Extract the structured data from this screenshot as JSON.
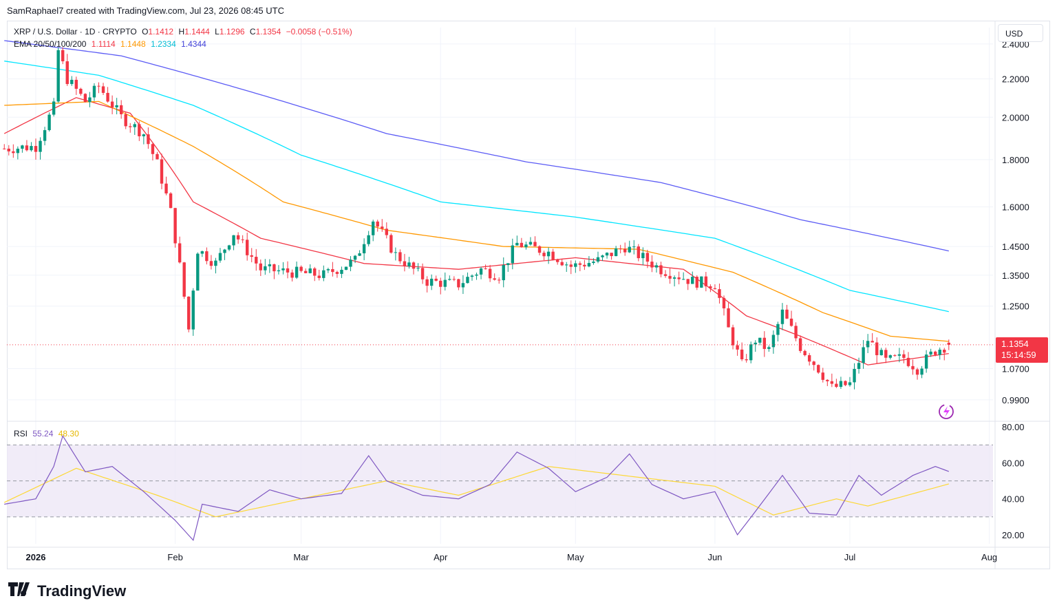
{
  "header": {
    "credit": "SamRaphael7 created with TradingView.com, Jul 23, 2026 08:45 UTC"
  },
  "legend": {
    "symbol": "XRP / U.S. Dollar · 1D · CRYPTO",
    "o_label": "O",
    "o_value": "1.1412",
    "h_label": "H",
    "h_value": "1.1444",
    "l_label": "L",
    "l_value": "1.1296",
    "c_label": "C",
    "c_value": "1.1354",
    "change": "−0.0058 (−0.51%)",
    "ema_label": "EMA 20/50/100/200",
    "ema20": "1.1114",
    "ema50": "1.1448",
    "ema100": "1.2334",
    "ema200": "1.4344",
    "rsi_label": "RSI",
    "rsi_value": "55.24",
    "rsi_ma_value": "48.30"
  },
  "currency_button": "USD",
  "price_tag": {
    "price": "1.1354",
    "countdown": "15:14:59"
  },
  "brand": "TradingView",
  "colors": {
    "up": "#089981",
    "down": "#f23645",
    "ema20": "#f23645",
    "ema50": "#ff9800",
    "ema100": "#00e5ff",
    "ema200": "#5b5bf5",
    "rsi": "#7e57c2",
    "rsi_ma": "#fdd835",
    "rsi_band": "#ede7f6"
  },
  "chart_data": {
    "type": "candlestick",
    "timeframe": "1D",
    "x_tick_labels": [
      "2026",
      "Feb",
      "Mar",
      "Apr",
      "May",
      "Jun",
      "Jul",
      "Aug"
    ],
    "y_tick_labels": [
      "2.4000",
      "2.2000",
      "2.0000",
      "1.8000",
      "1.6000",
      "1.4500",
      "1.3500",
      "1.2500",
      "1.0700",
      "0.9900"
    ],
    "y_scale": "log",
    "ylim": [
      0.95,
      2.5
    ],
    "price_line": 1.1354,
    "ohlc_anchors": [
      {
        "date": "2025-12-25",
        "close": 1.85
      },
      {
        "date": "2026-01-01",
        "close": 1.86
      },
      {
        "date": "2026-01-05",
        "close": 2.05
      },
      {
        "date": "2026-01-06",
        "close": 2.36
      },
      {
        "date": "2026-01-08",
        "close": 2.2
      },
      {
        "date": "2026-01-12",
        "close": 2.08
      },
      {
        "date": "2026-01-15",
        "close": 2.16
      },
      {
        "date": "2026-01-20",
        "close": 2.0
      },
      {
        "date": "2026-01-25",
        "close": 1.92
      },
      {
        "date": "2026-01-28",
        "close": 1.78
      },
      {
        "date": "2026-01-31",
        "close": 1.58
      },
      {
        "date": "2026-02-04",
        "close": 1.18
      },
      {
        "date": "2026-02-06",
        "close": 1.44
      },
      {
        "date": "2026-02-10",
        "close": 1.39
      },
      {
        "date": "2026-02-14",
        "close": 1.5
      },
      {
        "date": "2026-02-20",
        "close": 1.37
      },
      {
        "date": "2026-02-27",
        "close": 1.36
      },
      {
        "date": "2026-03-06",
        "close": 1.35
      },
      {
        "date": "2026-03-13",
        "close": 1.4
      },
      {
        "date": "2026-03-17",
        "close": 1.55
      },
      {
        "date": "2026-03-22",
        "close": 1.42
      },
      {
        "date": "2026-03-29",
        "close": 1.33
      },
      {
        "date": "2026-04-05",
        "close": 1.32
      },
      {
        "date": "2026-04-10",
        "close": 1.37
      },
      {
        "date": "2026-04-14",
        "close": 1.35
      },
      {
        "date": "2026-04-18",
        "close": 1.46
      },
      {
        "date": "2026-04-25",
        "close": 1.43
      },
      {
        "date": "2026-04-30",
        "close": 1.38
      },
      {
        "date": "2026-05-06",
        "close": 1.4
      },
      {
        "date": "2026-05-12",
        "close": 1.45
      },
      {
        "date": "2026-05-15",
        "close": 1.42
      },
      {
        "date": "2026-05-20",
        "close": 1.37
      },
      {
        "date": "2026-05-27",
        "close": 1.33
      },
      {
        "date": "2026-06-01",
        "close": 1.32
      },
      {
        "date": "2026-06-04",
        "close": 1.18
      },
      {
        "date": "2026-06-07",
        "close": 1.08
      },
      {
        "date": "2026-06-10",
        "close": 1.15
      },
      {
        "date": "2026-06-13",
        "close": 1.12
      },
      {
        "date": "2026-06-16",
        "close": 1.23
      },
      {
        "date": "2026-06-20",
        "close": 1.13
      },
      {
        "date": "2026-06-24",
        "close": 1.07
      },
      {
        "date": "2026-06-27",
        "close": 1.02
      },
      {
        "date": "2026-07-01",
        "close": 1.03
      },
      {
        "date": "2026-07-05",
        "close": 1.15
      },
      {
        "date": "2026-07-09",
        "close": 1.09
      },
      {
        "date": "2026-07-13",
        "close": 1.1
      },
      {
        "date": "2026-07-16",
        "close": 1.07
      },
      {
        "date": "2026-07-20",
        "close": 1.12
      },
      {
        "date": "2026-07-23",
        "close": 1.1354
      }
    ],
    "ema_series": [
      {
        "name": "EMA 20",
        "color": "#f23645",
        "points": [
          [
            "2025-12-25",
            1.92
          ],
          [
            "2026-01-10",
            2.1
          ],
          [
            "2026-01-22",
            2.02
          ],
          [
            "2026-02-05",
            1.62
          ],
          [
            "2026-02-20",
            1.48
          ],
          [
            "2026-03-15",
            1.39
          ],
          [
            "2026-04-05",
            1.37
          ],
          [
            "2026-05-01",
            1.41
          ],
          [
            "2026-05-25",
            1.37
          ],
          [
            "2026-06-08",
            1.22
          ],
          [
            "2026-06-20",
            1.16
          ],
          [
            "2026-07-05",
            1.08
          ],
          [
            "2026-07-23",
            1.111
          ]
        ]
      },
      {
        "name": "EMA 50",
        "color": "#ff9800",
        "points": [
          [
            "2025-12-25",
            2.06
          ],
          [
            "2026-01-15",
            2.08
          ],
          [
            "2026-02-05",
            1.86
          ],
          [
            "2026-02-25",
            1.62
          ],
          [
            "2026-03-20",
            1.51
          ],
          [
            "2026-04-15",
            1.45
          ],
          [
            "2026-05-15",
            1.44
          ],
          [
            "2026-06-05",
            1.36
          ],
          [
            "2026-06-25",
            1.23
          ],
          [
            "2026-07-10",
            1.16
          ],
          [
            "2026-07-23",
            1.145
          ]
        ]
      },
      {
        "name": "EMA 100",
        "color": "#00e5ff",
        "points": [
          [
            "2025-12-25",
            2.3
          ],
          [
            "2026-01-15",
            2.22
          ],
          [
            "2026-02-05",
            2.06
          ],
          [
            "2026-03-01",
            1.82
          ],
          [
            "2026-04-01",
            1.62
          ],
          [
            "2026-05-01",
            1.56
          ],
          [
            "2026-06-01",
            1.48
          ],
          [
            "2026-07-01",
            1.3
          ],
          [
            "2026-07-23",
            1.233
          ]
        ]
      },
      {
        "name": "EMA 200",
        "color": "#5b5bf5",
        "points": [
          [
            "2025-12-25",
            2.42
          ],
          [
            "2026-01-20",
            2.33
          ],
          [
            "2026-02-15",
            2.15
          ],
          [
            "2026-03-20",
            1.92
          ],
          [
            "2026-04-20",
            1.79
          ],
          [
            "2026-05-20",
            1.7
          ],
          [
            "2026-06-20",
            1.55
          ],
          [
            "2026-07-23",
            1.434
          ]
        ]
      }
    ],
    "rsi": {
      "upper_band": 70,
      "mid_line": 50,
      "lower_band": 30,
      "y_tick_labels": [
        "80.00",
        "60.00",
        "40.00",
        "20.00"
      ],
      "ylim": [
        15,
        82
      ],
      "rsi_anchors": [
        [
          "2025-12-25",
          37
        ],
        [
          "2026-01-01",
          40
        ],
        [
          "2026-01-05",
          58
        ],
        [
          "2026-01-07",
          75
        ],
        [
          "2026-01-12",
          55
        ],
        [
          "2026-01-18",
          58
        ],
        [
          "2026-01-25",
          44
        ],
        [
          "2026-02-01",
          28
        ],
        [
          "2026-02-05",
          17
        ],
        [
          "2026-02-07",
          37
        ],
        [
          "2026-02-15",
          33
        ],
        [
          "2026-02-22",
          45
        ],
        [
          "2026-03-01",
          40
        ],
        [
          "2026-03-10",
          43
        ],
        [
          "2026-03-16",
          64
        ],
        [
          "2026-03-20",
          50
        ],
        [
          "2026-03-28",
          42
        ],
        [
          "2026-04-05",
          40
        ],
        [
          "2026-04-12",
          48
        ],
        [
          "2026-04-18",
          66
        ],
        [
          "2026-04-25",
          57
        ],
        [
          "2026-05-01",
          44
        ],
        [
          "2026-05-08",
          52
        ],
        [
          "2026-05-13",
          65
        ],
        [
          "2026-05-18",
          48
        ],
        [
          "2026-05-25",
          40
        ],
        [
          "2026-06-01",
          44
        ],
        [
          "2026-06-06",
          20
        ],
        [
          "2026-06-10",
          33
        ],
        [
          "2026-06-16",
          53
        ],
        [
          "2026-06-22",
          32
        ],
        [
          "2026-06-28",
          31
        ],
        [
          "2026-07-03",
          53
        ],
        [
          "2026-07-08",
          42
        ],
        [
          "2026-07-15",
          53
        ],
        [
          "2026-07-20",
          58
        ],
        [
          "2026-07-23",
          55.24
        ]
      ],
      "rsi_ma_anchors": [
        [
          "2025-12-25",
          38
        ],
        [
          "2026-01-10",
          57
        ],
        [
          "2026-01-28",
          42
        ],
        [
          "2026-02-10",
          30
        ],
        [
          "2026-03-01",
          40
        ],
        [
          "2026-03-20",
          50
        ],
        [
          "2026-04-05",
          42
        ],
        [
          "2026-04-25",
          58
        ],
        [
          "2026-05-15",
          52
        ],
        [
          "2026-06-01",
          47
        ],
        [
          "2026-06-14",
          31
        ],
        [
          "2026-06-28",
          40
        ],
        [
          "2026-07-05",
          36
        ],
        [
          "2026-07-23",
          48.3
        ]
      ]
    }
  }
}
